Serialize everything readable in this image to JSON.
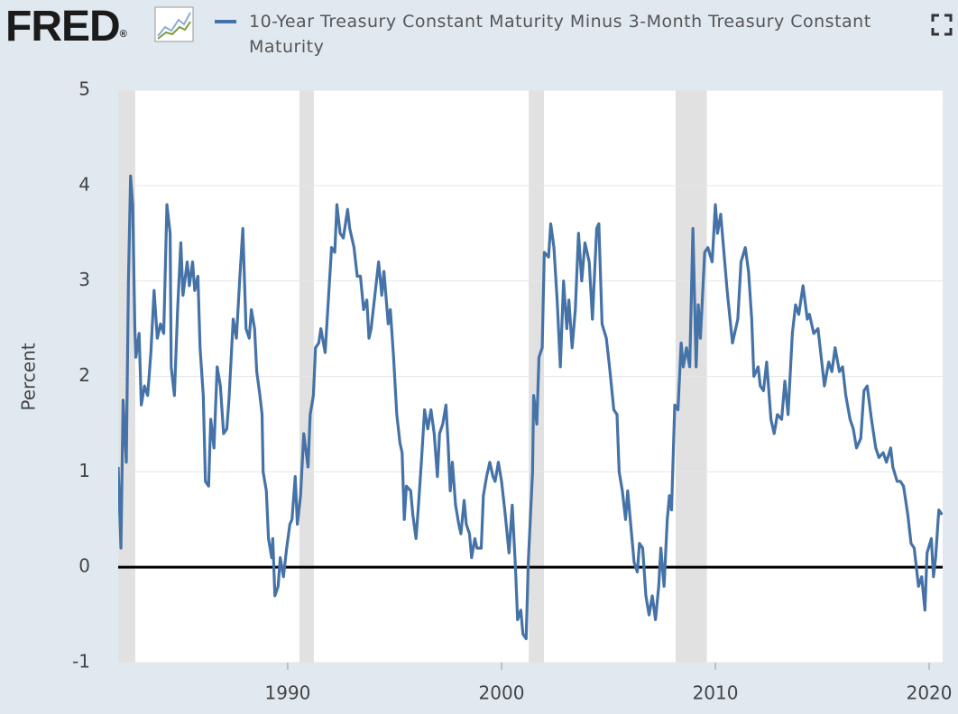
{
  "header": {
    "logo": "FRED",
    "logo_mark": "®"
  },
  "chart_data": {
    "type": "line",
    "y_label": "Percent",
    "xlim": [
      1982.07,
      2020.63
    ],
    "xticks": [
      1990,
      2000,
      2010,
      2020
    ],
    "ylim": [
      -1,
      5
    ],
    "yticks": [
      -1,
      0,
      1,
      2,
      3,
      4,
      5
    ],
    "grid": true,
    "recessions": [
      [
        1981.55,
        1982.87
      ],
      [
        1990.55,
        1991.22
      ],
      [
        2001.27,
        2001.98
      ],
      [
        2008.14,
        2009.6
      ]
    ],
    "recession_color": "#e1e1e1",
    "x": [
      1982.07,
      1982.2,
      1982.3,
      1982.45,
      1982.55,
      1982.65,
      1982.75,
      1982.85,
      1982.9,
      1983.05,
      1983.15,
      1983.3,
      1983.45,
      1983.6,
      1983.75,
      1983.9,
      1984.05,
      1984.2,
      1984.35,
      1984.5,
      1984.55,
      1984.7,
      1984.85,
      1985.0,
      1985.1,
      1985.3,
      1985.4,
      1985.55,
      1985.65,
      1985.8,
      1985.9,
      1986.05,
      1986.15,
      1986.3,
      1986.4,
      1986.55,
      1986.7,
      1986.85,
      1987.0,
      1987.15,
      1987.25,
      1987.45,
      1987.6,
      1987.75,
      1987.9,
      1988.05,
      1988.2,
      1988.3,
      1988.45,
      1988.55,
      1988.7,
      1988.8,
      1988.85,
      1989.0,
      1989.1,
      1989.25,
      1989.3,
      1989.4,
      1989.55,
      1989.65,
      1989.8,
      1989.95,
      1990.1,
      1990.2,
      1990.35,
      1990.45,
      1990.6,
      1990.75,
      1990.95,
      1991.05,
      1991.2,
      1991.3,
      1991.45,
      1991.55,
      1991.75,
      1991.9,
      1992.05,
      1992.2,
      1992.3,
      1992.45,
      1992.6,
      1992.8,
      1992.9,
      1993.1,
      1993.25,
      1993.4,
      1993.55,
      1993.7,
      1993.8,
      1993.9,
      1994.1,
      1994.25,
      1994.4,
      1994.5,
      1994.7,
      1994.8,
      1994.95,
      1995.1,
      1995.25,
      1995.35,
      1995.45,
      1995.55,
      1995.75,
      1995.85,
      1996.0,
      1996.1,
      1996.25,
      1996.4,
      1996.55,
      1996.7,
      1996.85,
      1997.0,
      1997.1,
      1997.25,
      1997.4,
      1997.5,
      1997.6,
      1997.7,
      1997.85,
      1998.0,
      1998.1,
      1998.25,
      1998.35,
      1998.5,
      1998.6,
      1998.75,
      1998.85,
      1999.05,
      1999.15,
      1999.3,
      1999.45,
      1999.6,
      1999.7,
      1999.85,
      2000.0,
      2000.15,
      2000.35,
      2000.5,
      2000.65,
      2000.75,
      2000.9,
      2001.0,
      2001.15,
      2001.25,
      2001.45,
      2001.5,
      2001.65,
      2001.75,
      2001.9,
      2002.0,
      2002.2,
      2002.3,
      2002.45,
      2002.6,
      2002.75,
      2002.9,
      2003.05,
      2003.15,
      2003.3,
      2003.45,
      2003.6,
      2003.75,
      2003.9,
      2004.1,
      2004.25,
      2004.45,
      2004.55,
      2004.7,
      2004.9,
      2005.05,
      2005.25,
      2005.4,
      2005.5,
      2005.65,
      2005.8,
      2005.9,
      2006.1,
      2006.2,
      2006.35,
      2006.45,
      2006.6,
      2006.75,
      2006.9,
      2007.05,
      2007.2,
      2007.35,
      2007.45,
      2007.6,
      2007.75,
      2007.85,
      2007.95,
      2008.1,
      2008.25,
      2008.4,
      2008.5,
      2008.65,
      2008.8,
      2008.95,
      2009.1,
      2009.2,
      2009.3,
      2009.5,
      2009.65,
      2009.85,
      2010.0,
      2010.1,
      2010.25,
      2010.55,
      2010.8,
      2011.05,
      2011.2,
      2011.4,
      2011.55,
      2011.7,
      2011.8,
      2012.0,
      2012.1,
      2012.25,
      2012.4,
      2012.6,
      2012.75,
      2012.9,
      2013.1,
      2013.25,
      2013.4,
      2013.6,
      2013.75,
      2013.9,
      2014.1,
      2014.3,
      2014.4,
      2014.6,
      2014.8,
      2014.95,
      2015.1,
      2015.3,
      2015.45,
      2015.6,
      2015.8,
      2015.95,
      2016.1,
      2016.3,
      2016.45,
      2016.6,
      2016.8,
      2016.95,
      2017.1,
      2017.3,
      2017.5,
      2017.65,
      2017.85,
      2018.0,
      2018.2,
      2018.3,
      2018.5,
      2018.65,
      2018.8,
      2019.0,
      2019.15,
      2019.3,
      2019.5,
      2019.65,
      2019.8,
      2019.9,
      2020.1,
      2020.2,
      2020.3,
      2020.45,
      2020.6
    ],
    "series": [
      {
        "name": "10-Year Treasury Constant Maturity Minus 3-Month Treasury Constant Maturity",
        "color": "#4572a7",
        "values": [
          1.05,
          0.2,
          1.75,
          1.1,
          3.0,
          4.1,
          3.8,
          2.5,
          2.2,
          2.45,
          1.7,
          1.9,
          1.8,
          2.25,
          2.9,
          2.4,
          2.55,
          2.45,
          3.8,
          3.5,
          2.1,
          1.8,
          2.7,
          3.4,
          2.85,
          3.2,
          2.95,
          3.2,
          2.9,
          3.05,
          2.3,
          1.8,
          0.9,
          0.85,
          1.55,
          1.25,
          2.1,
          1.9,
          1.4,
          1.45,
          1.75,
          2.6,
          2.4,
          3.0,
          3.55,
          2.5,
          2.4,
          2.7,
          2.5,
          2.05,
          1.8,
          1.6,
          1.0,
          0.8,
          0.3,
          0.1,
          0.3,
          -0.3,
          -0.2,
          0.1,
          -0.1,
          0.2,
          0.45,
          0.5,
          0.95,
          0.45,
          0.75,
          1.4,
          1.05,
          1.6,
          1.8,
          2.3,
          2.35,
          2.5,
          2.25,
          2.8,
          3.35,
          3.3,
          3.8,
          3.5,
          3.45,
          3.75,
          3.55,
          3.35,
          3.05,
          3.05,
          2.7,
          2.8,
          2.4,
          2.5,
          2.9,
          3.2,
          2.85,
          3.1,
          2.55,
          2.7,
          2.2,
          1.6,
          1.3,
          1.2,
          0.5,
          0.85,
          0.8,
          0.55,
          0.3,
          0.6,
          1.1,
          1.65,
          1.45,
          1.65,
          1.4,
          0.95,
          1.4,
          1.5,
          1.7,
          1.3,
          0.8,
          1.1,
          0.65,
          0.45,
          0.35,
          0.7,
          0.45,
          0.35,
          0.1,
          0.3,
          0.2,
          0.2,
          0.75,
          0.95,
          1.1,
          0.95,
          0.9,
          1.1,
          0.9,
          0.6,
          0.15,
          0.65,
          0.0,
          -0.55,
          -0.45,
          -0.7,
          -0.75,
          0.05,
          1.0,
          1.8,
          1.5,
          2.2,
          2.3,
          3.3,
          3.25,
          3.6,
          3.35,
          2.8,
          2.1,
          3.0,
          2.5,
          2.8,
          2.3,
          2.7,
          3.5,
          3.0,
          3.4,
          3.2,
          2.6,
          3.55,
          3.6,
          2.55,
          2.4,
          2.1,
          1.65,
          1.6,
          1.0,
          0.8,
          0.5,
          0.8,
          0.3,
          0.05,
          -0.05,
          0.25,
          0.2,
          -0.3,
          -0.5,
          -0.3,
          -0.55,
          -0.2,
          0.2,
          -0.2,
          0.5,
          0.75,
          0.6,
          1.7,
          1.65,
          2.35,
          2.1,
          2.3,
          2.1,
          3.55,
          2.1,
          2.75,
          2.4,
          3.3,
          3.35,
          3.2,
          3.8,
          3.5,
          3.7,
          2.9,
          2.35,
          2.6,
          3.2,
          3.35,
          3.1,
          2.6,
          2.0,
          2.1,
          1.9,
          1.85,
          2.15,
          1.55,
          1.4,
          1.6,
          1.55,
          1.95,
          1.6,
          2.45,
          2.75,
          2.65,
          2.95,
          2.6,
          2.65,
          2.45,
          2.5,
          2.2,
          1.9,
          2.15,
          2.05,
          2.3,
          2.05,
          2.1,
          1.8,
          1.55,
          1.45,
          1.25,
          1.35,
          1.85,
          1.9,
          1.55,
          1.25,
          1.15,
          1.2,
          1.1,
          1.25,
          1.05,
          0.9,
          0.9,
          0.85,
          0.55,
          0.25,
          0.2,
          -0.2,
          -0.1,
          -0.45,
          0.15,
          0.3,
          -0.1,
          0.1,
          0.6,
          0.55
        ]
      }
    ]
  }
}
